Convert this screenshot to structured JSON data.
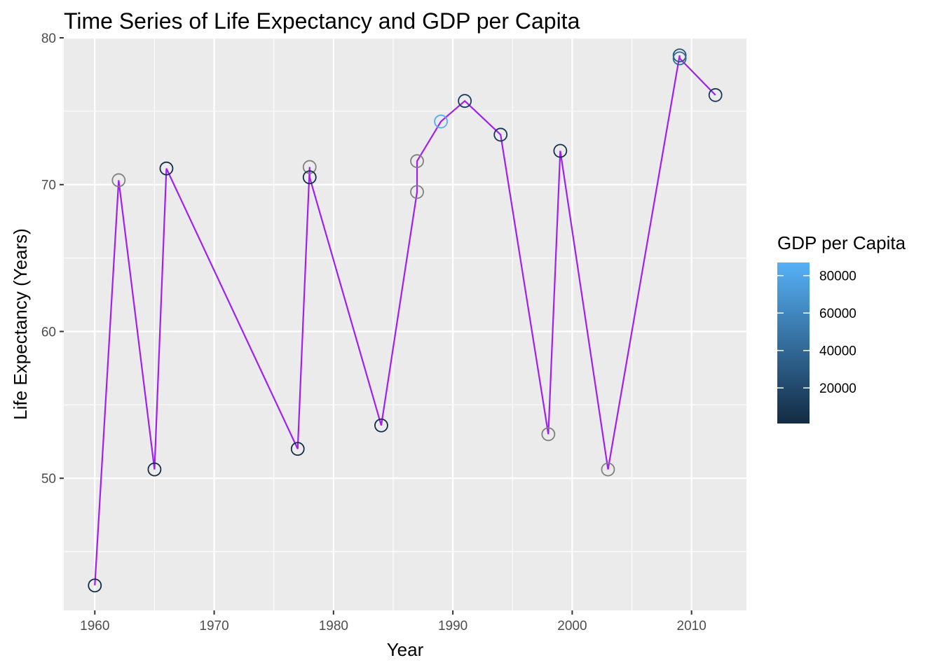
{
  "chart_data": {
    "type": "line",
    "title": "Time Series of Life Expectancy and GDP per Capita",
    "xlabel": "Year",
    "ylabel": "Life Expectancy (Years)",
    "xlim": [
      1957.4,
      2014.6
    ],
    "ylim": [
      41.0,
      80.0
    ],
    "x_ticks": [
      1960,
      1970,
      1980,
      1990,
      2000,
      2010
    ],
    "y_ticks": [
      50,
      60,
      70,
      80
    ],
    "grid": true,
    "line_color": "#A020F0",
    "panel_background": "#EBEBEB",
    "series": [
      {
        "points": [
          {
            "x": 1960,
            "y": 42.7,
            "gdp": 1000
          },
          {
            "x": 1962,
            "y": 70.3,
            "gdp": null
          },
          {
            "x": 1965,
            "y": 50.6,
            "gdp": 1500
          },
          {
            "x": 1966,
            "y": 71.1,
            "gdp": 2000
          },
          {
            "x": 1977,
            "y": 52.0,
            "gdp": 1200
          },
          {
            "x": 1978,
            "y": 71.2,
            "gdp": null
          },
          {
            "x": 1978,
            "y": 70.5,
            "gdp": 3000
          },
          {
            "x": 1984,
            "y": 53.6,
            "gdp": 1500
          },
          {
            "x": 1987,
            "y": 69.5,
            "gdp": null
          },
          {
            "x": 1987,
            "y": 71.6,
            "gdp": null
          },
          {
            "x": 1989,
            "y": 74.3,
            "gdp": 85000
          },
          {
            "x": 1991,
            "y": 75.7,
            "gdp": 12000
          },
          {
            "x": 1994,
            "y": 73.4,
            "gdp": 8000
          },
          {
            "x": 1998,
            "y": 53.0,
            "gdp": null
          },
          {
            "x": 1999,
            "y": 72.3,
            "gdp": 5000
          },
          {
            "x": 2003,
            "y": 50.6,
            "gdp": null
          },
          {
            "x": 2009,
            "y": 78.8,
            "gdp": 30000
          },
          {
            "x": 2009,
            "y": 78.6,
            "gdp": 40000
          },
          {
            "x": 2012,
            "y": 76.1,
            "gdp": 10000
          }
        ]
      }
    ],
    "legend": {
      "title": "GDP per Capita",
      "position": "right",
      "type": "colorbar",
      "range": [
        1000,
        87000
      ],
      "breaks": [
        20000,
        40000,
        60000,
        80000
      ],
      "labels": [
        "20000",
        "40000",
        "60000",
        "80000"
      ],
      "color_low": "#132B43",
      "color_high": "#56B1F7",
      "na_color": "#808080"
    }
  }
}
